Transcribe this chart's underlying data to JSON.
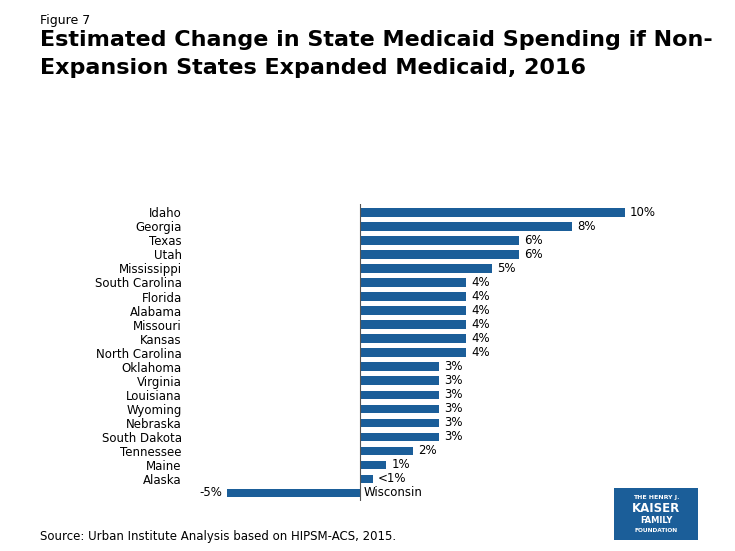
{
  "figure_label": "Figure 7",
  "title_line1": "Estimated Change in State Medicaid Spending if Non-",
  "title_line2": "Expansion States Expanded Medicaid, 2016",
  "states": [
    "Idaho",
    "Georgia",
    "Texas",
    "Utah",
    "Mississippi",
    "South Carolina",
    "Florida",
    "Alabama",
    "Missouri",
    "Kansas",
    "North Carolina",
    "Oklahoma",
    "Virginia",
    "Louisiana",
    "Wyoming",
    "Nebraska",
    "South Dakota",
    "Tennessee",
    "Maine",
    "Alaska",
    "Wisconsin"
  ],
  "values": [
    10,
    8,
    6,
    6,
    5,
    4,
    4,
    4,
    4,
    4,
    4,
    3,
    3,
    3,
    3,
    3,
    3,
    2,
    1,
    0.5,
    -5
  ],
  "labels": [
    "10%",
    "8%",
    "6%",
    "6%",
    "5%",
    "4%",
    "4%",
    "4%",
    "4%",
    "4%",
    "4%",
    "3%",
    "3%",
    "3%",
    "3%",
    "3%",
    "3%",
    "2%",
    "1%",
    "<1%",
    "-5%"
  ],
  "bar_color": "#1b5e99",
  "background_color": "#ffffff",
  "source_text": "Source: Urban Institute Analysis based on HIPSM-ACS, 2015.",
  "xlim": [
    -6.5,
    12.5
  ],
  "bar_height": 0.6,
  "kaiser_logo_color": "#1b5e99",
  "vline_color": "#888888",
  "label_fontsize": 8.5,
  "tick_fontsize": 8.5
}
